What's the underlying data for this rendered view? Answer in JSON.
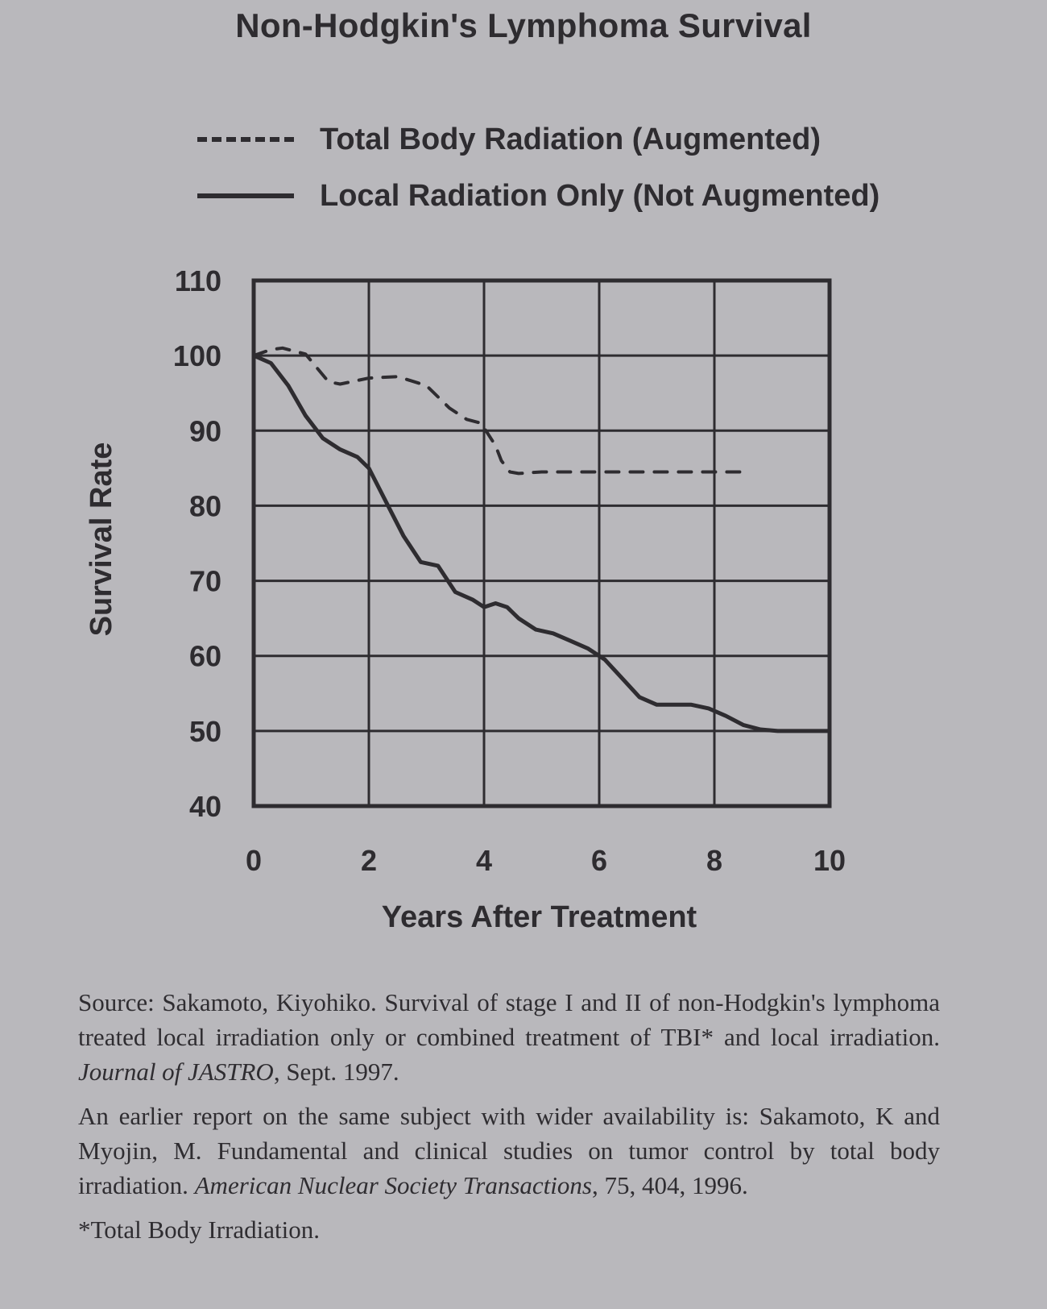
{
  "chart_data": {
    "type": "line",
    "title": "Non-Hodgkin's Lymphoma Survival",
    "xlabel": "Years After Treatment",
    "ylabel": "Survival Rate",
    "xlim": [
      0,
      10
    ],
    "ylim": [
      40,
      110
    ],
    "x_ticks": [
      "0",
      "2",
      "4",
      "6",
      "8",
      "10"
    ],
    "y_ticks": [
      "40",
      "50",
      "60",
      "70",
      "80",
      "90",
      "100",
      "110"
    ],
    "grid": true,
    "legend_position": "top",
    "series": [
      {
        "name": "Total Body Radiation (Augmented)",
        "style": "dashed",
        "x": [
          0,
          0.3,
          0.5,
          0.9,
          1.3,
          1.5,
          2.0,
          2.5,
          3.0,
          3.4,
          3.7,
          3.95,
          4.2,
          4.3,
          4.45,
          4.6,
          5.0,
          6.0,
          7.0,
          8.0,
          8.5
        ],
        "y": [
          100,
          100.8,
          101,
          100.2,
          96.5,
          96.2,
          97,
          97.2,
          96,
          93,
          91.5,
          91,
          88,
          86,
          84.5,
          84.3,
          84.5,
          84.5,
          84.5,
          84.5,
          84.5
        ]
      },
      {
        "name": "Local Radiation Only (Not Augmented)",
        "style": "solid",
        "x": [
          0,
          0.3,
          0.6,
          0.9,
          1.2,
          1.5,
          1.8,
          2.0,
          2.3,
          2.6,
          2.9,
          3.2,
          3.5,
          3.8,
          4.0,
          4.2,
          4.4,
          4.6,
          4.9,
          5.2,
          5.5,
          5.8,
          6.1,
          6.4,
          6.7,
          7.0,
          7.3,
          7.6,
          7.9,
          8.2,
          8.5,
          8.8,
          9.1,
          9.4,
          10.0
        ],
        "y": [
          100,
          99,
          96,
          92,
          89,
          87.5,
          86.5,
          85,
          80.5,
          76,
          72.5,
          72,
          68.5,
          67.5,
          66.5,
          67,
          66.5,
          65,
          63.5,
          63,
          62,
          61,
          59.5,
          57,
          54.5,
          53.5,
          53.5,
          53.5,
          53,
          52,
          50.8,
          50.2,
          50,
          50,
          50
        ]
      }
    ]
  },
  "source": {
    "citation_1_a": "Source: Sakamoto, Kiyohiko. Survival of stage I and II of non-Hodgkin's lymphoma treated local irradiation only or combined treatment of TBI* and local irradiation. ",
    "citation_1_journal": "Journal of JASTRO",
    "citation_1_b": ", Sept. 1997.",
    "citation_2_a": "An earlier report on the same subject with wider availability is: Sakamoto, K and Myojin, M. Fundamental and clinical studies on tumor control by total body irradiation. ",
    "citation_2_journal": "American Nuclear Society Transactions",
    "citation_2_b": ", 75, 404, 1996.",
    "footnote": "*Total Body Irradiation."
  }
}
